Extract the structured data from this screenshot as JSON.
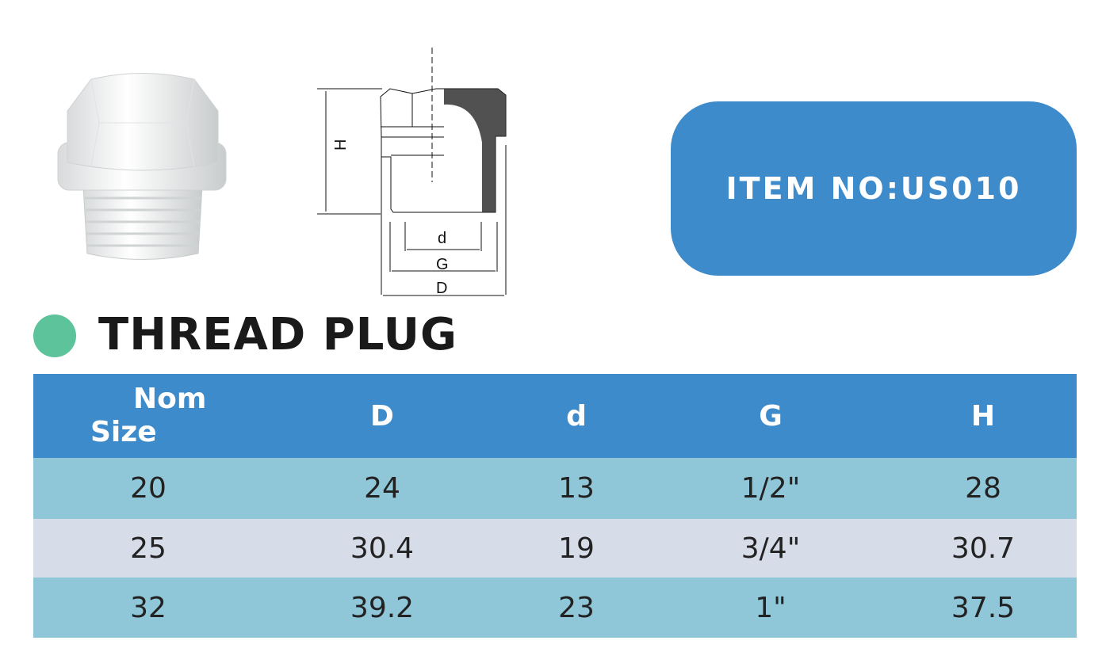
{
  "item": {
    "label": "ITEM NO:US010"
  },
  "product": {
    "title": "THREAD PLUG"
  },
  "diagram": {
    "labels": {
      "H": "H",
      "d": "d",
      "G": "G",
      "D": "D"
    }
  },
  "colors": {
    "header": "#3d8bca",
    "row_light_blue": "#8fc7d8",
    "row_grey": "#d6dde9",
    "bullet": "#5dc39a"
  },
  "table": {
    "headers": {
      "nom_line1": "Nom",
      "nom_line2": "Size",
      "D": "D",
      "d": "d",
      "G": "G",
      "H": "H"
    },
    "rows": [
      [
        "20",
        "24",
        "13",
        "1/2\"",
        "28"
      ],
      [
        "25",
        "30.4",
        "19",
        "3/4\"",
        "30.7"
      ],
      [
        "32",
        "39.2",
        "23",
        "1\"",
        "37.5"
      ]
    ]
  }
}
